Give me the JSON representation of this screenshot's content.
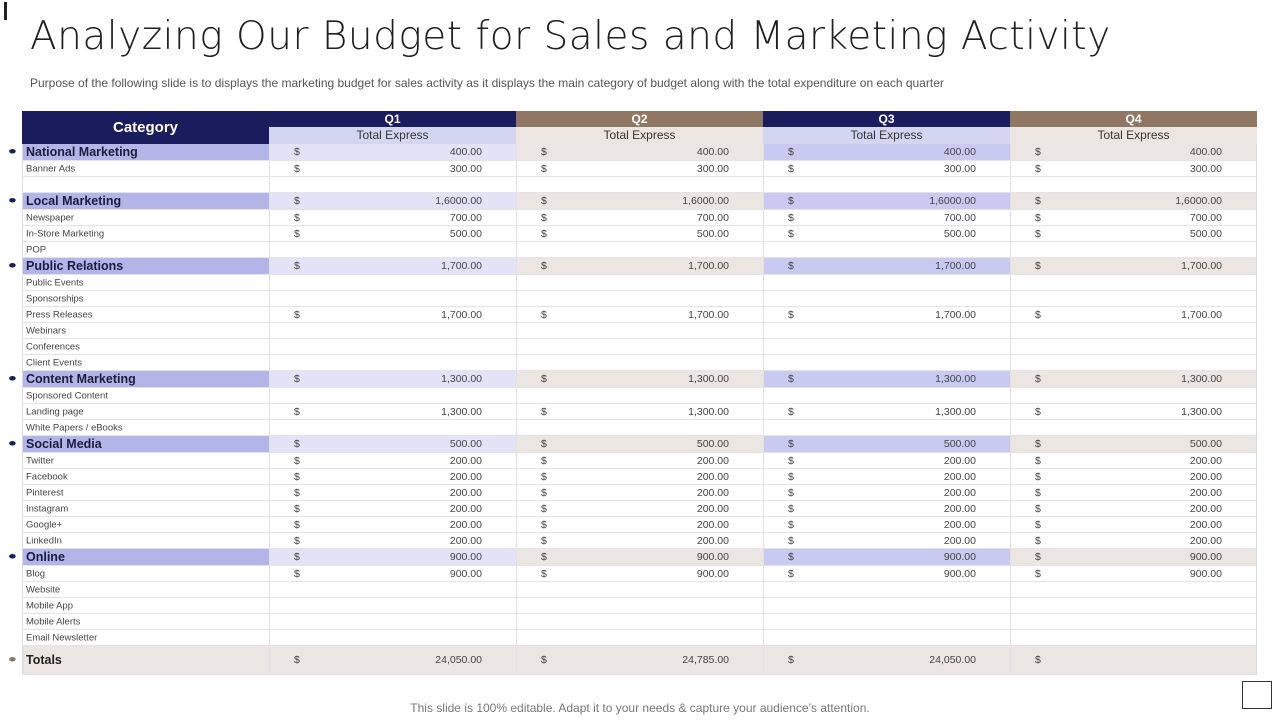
{
  "title": "Analyzing Our Budget for Sales and Marketing Activity",
  "subtitle": "Purpose of the following slide is to displays the marketing budget for sales activity as it displays the main category of budget along with the total expenditure on each quarter",
  "footer": "This slide is 100% editable. Adapt it to your needs & capture your audience’s attention.",
  "table": {
    "category_header": "Category",
    "quarters": [
      {
        "label": "Q1",
        "sub": "Total Express",
        "style": "navy"
      },
      {
        "label": "Q2",
        "sub": "Total Express",
        "style": "brown"
      },
      {
        "label": "Q3",
        "sub": "Total Express",
        "style": "navy"
      },
      {
        "label": "Q4",
        "sub": "Total Express",
        "style": "brown"
      }
    ],
    "currency": "$",
    "bullet_glyph": "⬬",
    "rows": [
      {
        "label": "National Marketing",
        "type": "cat",
        "values": [
          "400.00",
          "400.00",
          "400.00",
          "400.00"
        ]
      },
      {
        "label": "Banner Ads",
        "type": "item",
        "values": [
          "300.00",
          "300.00",
          "300.00",
          "300.00"
        ]
      },
      {
        "label": "",
        "type": "item",
        "values": null
      },
      {
        "label": "Local Marketing",
        "type": "cat",
        "values": [
          "1,6000.00",
          "1,6000.00",
          "1,6000.00",
          "1,6000.00"
        ]
      },
      {
        "label": "Newspaper",
        "type": "item",
        "values": [
          "700.00",
          "700.00",
          "700.00",
          "700.00"
        ]
      },
      {
        "label": "In-Store Marketing",
        "type": "item",
        "values": [
          "500.00",
          "500.00",
          "500.00",
          "500.00"
        ]
      },
      {
        "label": "POP",
        "type": "item",
        "values": null
      },
      {
        "label": "Public Relations",
        "type": "cat",
        "values": [
          "1,700.00",
          "1,700.00",
          "1,700.00",
          "1,700.00"
        ]
      },
      {
        "label": "Public Events",
        "type": "item",
        "values": null
      },
      {
        "label": "Sponsorships",
        "type": "item",
        "values": null
      },
      {
        "label": "Press Releases",
        "type": "item",
        "values": [
          "1,700.00",
          "1,700.00",
          "1,700.00",
          "1,700.00"
        ]
      },
      {
        "label": "Webinars",
        "type": "item",
        "values": null
      },
      {
        "label": "Conferences",
        "type": "item",
        "values": null
      },
      {
        "label": "Client Events",
        "type": "item",
        "values": null
      },
      {
        "label": "Content Marketing",
        "type": "cat",
        "values": [
          "1,300.00",
          "1,300.00",
          "1,300.00",
          "1,300.00"
        ]
      },
      {
        "label": "Sponsored Content",
        "type": "item",
        "values": null
      },
      {
        "label": "Landing page",
        "type": "item",
        "values": [
          "1,300.00",
          "1,300.00",
          "1,300.00",
          "1,300.00"
        ]
      },
      {
        "label": "White Papers / eBooks",
        "type": "item",
        "values": null
      },
      {
        "label": "Social Media",
        "type": "cat",
        "values": [
          "500.00",
          "500.00",
          "500.00",
          "500.00"
        ]
      },
      {
        "label": "Twitter",
        "type": "item",
        "values": [
          "200.00",
          "200.00",
          "200.00",
          "200.00"
        ]
      },
      {
        "label": "Facebook",
        "type": "item",
        "values": [
          "200.00",
          "200.00",
          "200.00",
          "200.00"
        ]
      },
      {
        "label": "Pinterest",
        "type": "item",
        "values": [
          "200.00",
          "200.00",
          "200.00",
          "200.00"
        ]
      },
      {
        "label": "Instagram",
        "type": "item",
        "values": [
          "200.00",
          "200.00",
          "200.00",
          "200.00"
        ]
      },
      {
        "label": "Google+",
        "type": "item",
        "values": [
          "200.00",
          "200.00",
          "200.00",
          "200.00"
        ]
      },
      {
        "label": "LinkedIn",
        "type": "item",
        "values": [
          "200.00",
          "200.00",
          "200.00",
          "200.00"
        ]
      },
      {
        "label": "Online",
        "type": "cat",
        "values": [
          "900.00",
          "900.00",
          "900.00",
          "900.00"
        ]
      },
      {
        "label": "Blog",
        "type": "item",
        "values": [
          "900.00",
          "900.00",
          "900.00",
          "900.00"
        ]
      },
      {
        "label": "Website",
        "type": "item",
        "values": null
      },
      {
        "label": "Mobile App",
        "type": "item",
        "values": null
      },
      {
        "label": "Mobile Alerts",
        "type": "item",
        "values": null
      },
      {
        "label": "Email Newsletter",
        "type": "item",
        "values": null
      },
      {
        "label": "Totals",
        "type": "tot",
        "values": [
          "24,050.00",
          "24,785.00",
          "24,050.00",
          ""
        ]
      }
    ]
  }
}
